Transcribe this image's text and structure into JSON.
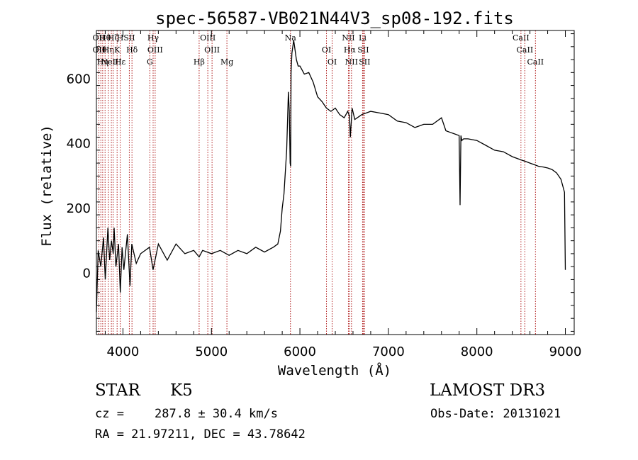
{
  "chart_data": {
    "type": "line",
    "title": "spec-56587-VB021N44V3_sp08-192.fits",
    "xlabel": "Wavelength (Å)",
    "ylabel": "Flux (relative)",
    "xlim": [
      3700,
      9100
    ],
    "ylim": [
      -190,
      750
    ],
    "x_ticks": [
      4000,
      5000,
      6000,
      7000,
      8000,
      9000
    ],
    "y_ticks": [
      0,
      200,
      400,
      600
    ],
    "grid": false,
    "series": [
      {
        "x": [
          3700,
          3720,
          3750,
          3780,
          3800,
          3830,
          3850,
          3870,
          3890,
          3900,
          3920,
          3950,
          3970,
          3990,
          4010,
          4050,
          4080,
          4100,
          4150,
          4200,
          4300,
          4340,
          4400,
          4500,
          4600,
          4700,
          4800,
          4861,
          4900,
          5000,
          5100,
          5200,
          5300,
          5400,
          5500,
          5600,
          5700,
          5750,
          5780,
          5800,
          5820,
          5850,
          5870,
          5880,
          5890,
          5895,
          5900,
          5910,
          5930,
          5960,
          5980,
          6000,
          6050,
          6100,
          6150,
          6200,
          6250,
          6300,
          6350,
          6400,
          6450,
          6500,
          6540,
          6560,
          6570,
          6590,
          6620,
          6700,
          6800,
          6900,
          7000,
          7100,
          7200,
          7300,
          7400,
          7500,
          7600,
          7650,
          7700,
          7750,
          7800,
          7810,
          7820,
          7830,
          7850,
          7900,
          8000,
          8100,
          8200,
          8300,
          8400,
          8500,
          8550,
          8600,
          8650,
          8700,
          8750,
          8800,
          8850,
          8900,
          8950,
          8990,
          9000
        ],
        "y": [
          -120,
          70,
          20,
          110,
          -20,
          140,
          40,
          100,
          60,
          140,
          20,
          90,
          -60,
          80,
          10,
          120,
          -40,
          90,
          30,
          60,
          80,
          10,
          90,
          40,
          90,
          60,
          70,
          50,
          70,
          60,
          70,
          55,
          70,
          60,
          80,
          65,
          80,
          90,
          130,
          200,
          245,
          380,
          560,
          500,
          340,
          330,
          620,
          680,
          720,
          660,
          640,
          640,
          615,
          620,
          590,
          545,
          530,
          510,
          500,
          510,
          490,
          480,
          500,
          485,
          420,
          510,
          475,
          490,
          500,
          495,
          490,
          470,
          465,
          450,
          460,
          460,
          480,
          440,
          435,
          430,
          425,
          210,
          425,
          410,
          415,
          415,
          410,
          395,
          380,
          375,
          360,
          350,
          345,
          340,
          335,
          330,
          328,
          325,
          320,
          310,
          290,
          250,
          10
        ]
      }
    ],
    "line_markers": [
      {
        "x": 3727,
        "labels": [
          "OII",
          "OII"
        ]
      },
      {
        "x": 3750,
        "labels": [
          "Hθ"
        ]
      },
      {
        "x": 3771,
        "labels": [
          "Hη"
        ]
      },
      {
        "x": 3798,
        "labels": [
          "Hθ"
        ]
      },
      {
        "x": 3835,
        "labels": [
          "Hη"
        ]
      },
      {
        "x": 3869,
        "labels": [
          "NeIII"
        ]
      },
      {
        "x": 3889,
        "labels": [
          "Hζ"
        ]
      },
      {
        "x": 3934,
        "labels": [
          "K"
        ]
      },
      {
        "x": 3969,
        "labels": [
          "Hε",
          "H"
        ]
      },
      {
        "x": 4072,
        "labels": [
          "SII"
        ]
      },
      {
        "x": 4102,
        "labels": [
          "Hδ"
        ]
      },
      {
        "x": 4304,
        "labels": [
          "G"
        ]
      },
      {
        "x": 4341,
        "labels": [
          "Hγ"
        ]
      },
      {
        "x": 4364,
        "labels": [
          "OIII"
        ]
      },
      {
        "x": 4861,
        "labels": [
          "Hβ"
        ]
      },
      {
        "x": 4959,
        "labels": [
          "OIII"
        ]
      },
      {
        "x": 5007,
        "labels": [
          "OIII"
        ]
      },
      {
        "x": 5175,
        "labels": [
          "Mg"
        ]
      },
      {
        "x": 5893,
        "labels": [
          "Na"
        ]
      },
      {
        "x": 6300,
        "labels": [
          "OI"
        ]
      },
      {
        "x": 6364,
        "labels": [
          "OI"
        ]
      },
      {
        "x": 6548,
        "labels": [
          "NII"
        ]
      },
      {
        "x": 6563,
        "labels": [
          "Hα"
        ]
      },
      {
        "x": 6583,
        "labels": [
          "NII"
        ]
      },
      {
        "x": 6708,
        "labels": [
          "Li"
        ]
      },
      {
        "x": 6716,
        "labels": [
          "SII"
        ]
      },
      {
        "x": 6731,
        "labels": [
          "SII"
        ]
      },
      {
        "x": 8498,
        "labels": [
          "CaII"
        ]
      },
      {
        "x": 8542,
        "labels": [
          "CaII"
        ]
      },
      {
        "x": 8662,
        "labels": [
          "CaII"
        ]
      }
    ],
    "marker_color": "#b22222",
    "line_color": "#000000"
  },
  "info": {
    "class": "STAR",
    "subclass": "K5",
    "survey": "LAMOST DR3",
    "cz_label": "cz =",
    "cz_value": "287.8 ± 30.4 km/s",
    "obs_date": "Obs-Date: 20131021",
    "ra_dec": "RA =  21.97211, DEC =  43.78642"
  }
}
